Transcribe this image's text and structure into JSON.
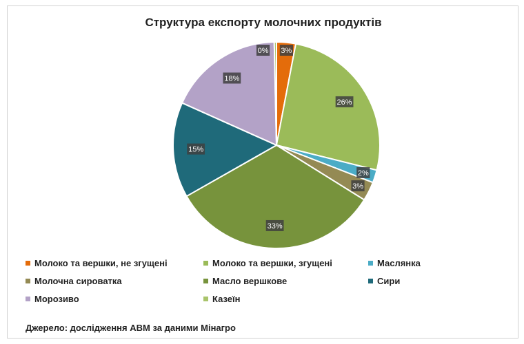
{
  "chart_data": {
    "type": "pie",
    "title": "Структура експорту молочних продуктів",
    "categories": [
      "Молоко та вершки, не згущені",
      "Молоко та вершки, згущені",
      "Маслянка",
      "Молочна сироватка",
      "Масло вершкове",
      "Сири",
      "Морозиво",
      "Казеїн"
    ],
    "values": [
      3,
      26,
      2,
      3,
      33,
      15,
      18,
      0
    ],
    "labels": [
      "3%",
      "26%",
      "2%",
      "3%",
      "33%",
      "15%",
      "18%",
      "0%"
    ],
    "colors": [
      "#E46C0A",
      "#9BBB59",
      "#4BACC6",
      "#948A54",
      "#77933C",
      "#1F6A7A",
      "#B3A2C7",
      "#A9C46B"
    ],
    "legend_position": "bottom"
  },
  "source": "Джерело: дослідження АВМ за даними Мінагро"
}
